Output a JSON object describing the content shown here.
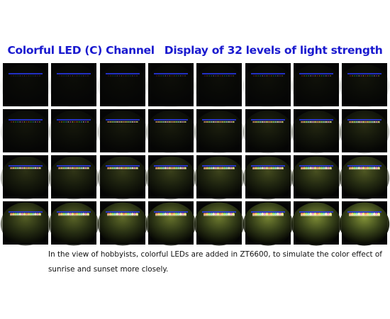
{
  "title": {
    "channel": "Colorful LED (C) Channel",
    "levels": "Display of 32 levels of light strength"
  },
  "caption": [
    "In the view of hobbyists, colorful LEDs are added in ZT6600, to simulate the color effect of",
    "sunrise and sunset more closely."
  ]
}
